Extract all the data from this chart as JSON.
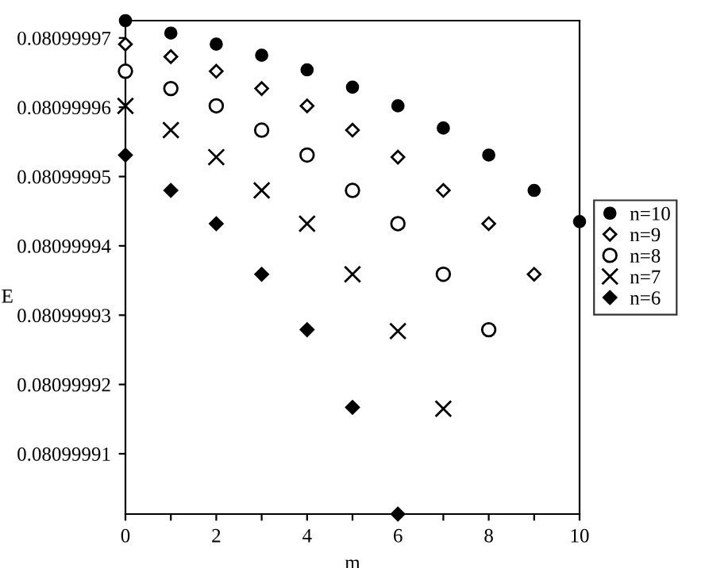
{
  "chart_data": {
    "type": "scatter",
    "xlabel": "m",
    "ylabel": "E",
    "xlim": [
      0,
      10
    ],
    "xticks": [
      0,
      {
        "value": 1,
        "label": null
      },
      2,
      {
        "value": 3,
        "label": null
      },
      4,
      {
        "value": 5,
        "label": null
      },
      6,
      {
        "value": 7,
        "label": null
      },
      8,
      {
        "value": 9,
        "label": null
      },
      10
    ],
    "ylim": [
      0.0809999013,
      0.0809999725
    ],
    "yticks": [
      0.08099991,
      0.08099992,
      0.08099993,
      0.08099994,
      0.08099995,
      0.08099996,
      0.08099997
    ],
    "grid": false,
    "legend": "right",
    "series": [
      {
        "name": "n=10",
        "color": "#000000",
        "marker": "circle",
        "x": [
          0,
          1,
          2,
          3,
          4,
          5,
          6,
          7,
          8,
          9,
          10
        ],
        "values": [
          0.0809999725,
          0.0809999707,
          0.0809999691,
          0.0809999675,
          0.0809999654,
          0.0809999629,
          0.0809999602,
          0.080999957,
          0.0809999531,
          0.080999948,
          0.0809999435
        ]
      },
      {
        "name": "n=9",
        "color": "#000000",
        "marker": "diamond",
        "x": [
          0,
          1,
          2,
          3,
          4,
          5,
          6,
          7,
          8,
          9
        ],
        "values": [
          0.0809999691,
          0.0809999673,
          0.0809999652,
          0.0809999627,
          0.0809999602,
          0.0809999567,
          0.0809999528,
          0.080999948,
          0.0809999432,
          0.0809999359
        ]
      },
      {
        "name": "n=8",
        "color": "#000000",
        "marker": "circle",
        "x": [
          0,
          1,
          2,
          3,
          4,
          5,
          6,
          7,
          8
        ],
        "values": [
          0.0809999652,
          0.0809999627,
          0.0809999602,
          0.0809999567,
          0.0809999531,
          0.080999948,
          0.0809999432,
          0.0809999359,
          0.0809999279
        ]
      },
      {
        "name": "n=7",
        "color": "#000000",
        "marker": "cross",
        "x": [
          0,
          1,
          2,
          3,
          4,
          5,
          6,
          7
        ],
        "values": [
          0.0809999602,
          0.0809999567,
          0.0809999528,
          0.080999948,
          0.0809999432,
          0.0809999359,
          0.0809999277,
          0.0809999165
        ]
      },
      {
        "name": "n=6",
        "color": "#000000",
        "marker": "diamond",
        "x": [
          0,
          1,
          2,
          3,
          4,
          5,
          6
        ],
        "values": [
          0.0809999531,
          0.080999948,
          0.0809999432,
          0.0809999359,
          0.0809999279,
          0.0809999167,
          0.0809999013
        ]
      }
    ]
  }
}
